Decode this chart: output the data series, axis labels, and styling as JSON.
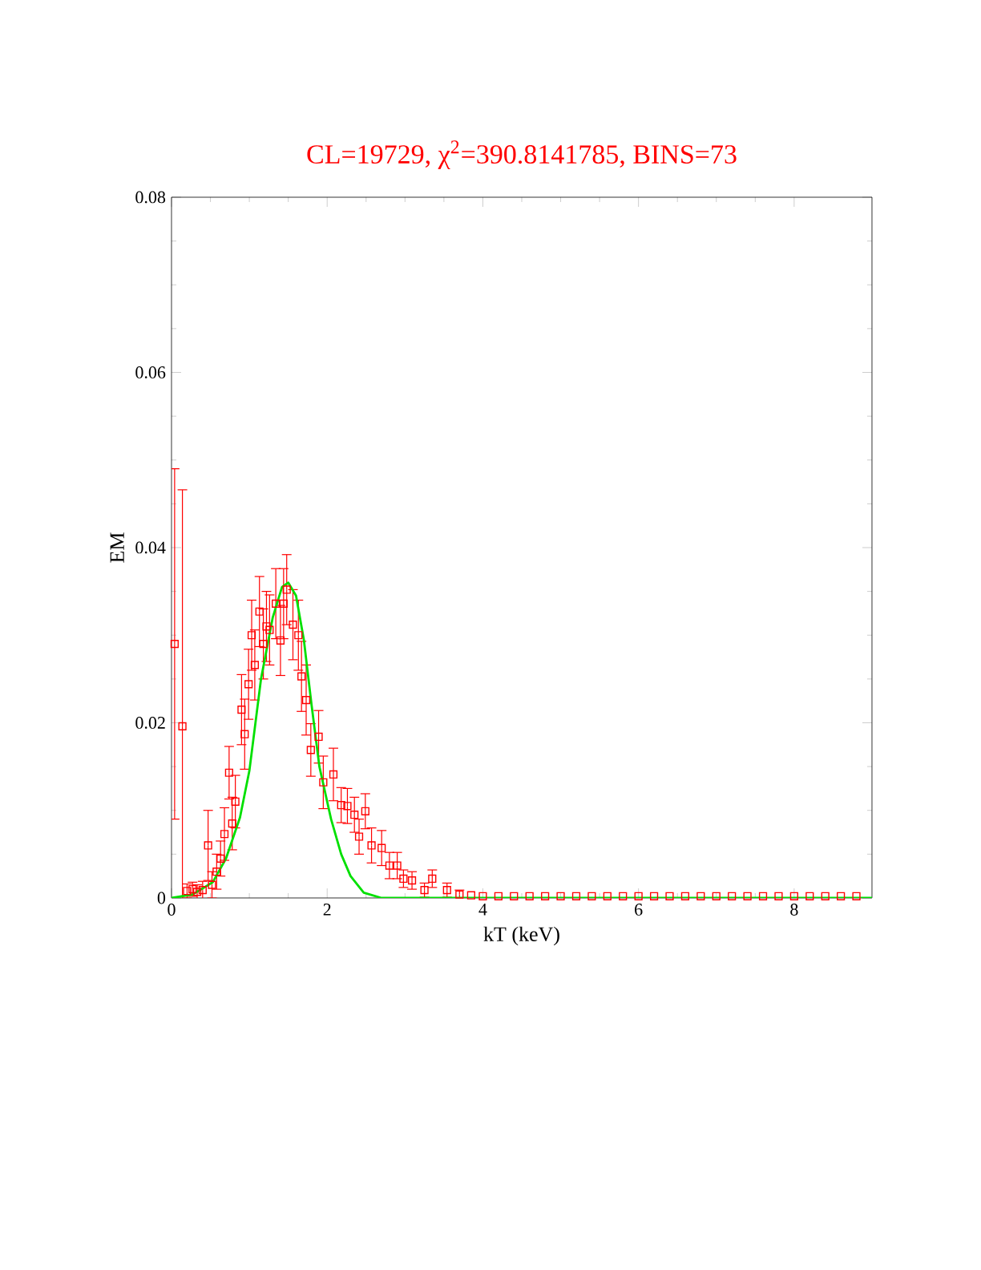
{
  "chart_data": {
    "type": "scatter",
    "title": "CL=19729, χ$^{2}$=390.8141785, BINS=73",
    "xlabel": "kT (keV)",
    "ylabel": "EM",
    "xlim": [
      0,
      9
    ],
    "ylim": [
      0,
      0.08
    ],
    "xticks": [
      0,
      2,
      4,
      6,
      8
    ],
    "yticks": [
      0,
      0.02,
      0.04,
      0.06,
      0.08
    ],
    "grid": false,
    "series": [
      {
        "color": "#ff0000",
        "marker": "square",
        "x": [
          0.04,
          0.14,
          0.2,
          0.27,
          0.33,
          0.4,
          0.47,
          0.52,
          0.58,
          0.63,
          0.68,
          0.74,
          0.78,
          0.82,
          0.9,
          0.94,
          0.99,
          1.03,
          1.07,
          1.13,
          1.18,
          1.22,
          1.26,
          1.34,
          1.4,
          1.44,
          1.48,
          1.56,
          1.63,
          1.67,
          1.73,
          1.79,
          1.89,
          1.95,
          2.08,
          2.18,
          2.26,
          2.35,
          2.41,
          2.49,
          2.57,
          2.7,
          2.8,
          2.9,
          2.98,
          3.09,
          3.25,
          3.35,
          3.54,
          3.7,
          3.85,
          4.0,
          4.2,
          4.4,
          4.6,
          4.8,
          5.0,
          5.2,
          5.4,
          5.6,
          5.8,
          6.0,
          6.2,
          6.4,
          6.6,
          6.8,
          7.0,
          7.2,
          7.4,
          7.6,
          7.8,
          8.0,
          8.2,
          8.4,
          8.6,
          8.8
        ],
        "values": [
          0.029,
          0.0196,
          0.0008,
          0.001,
          0.0007,
          0.0009,
          0.006,
          0.0015,
          0.003,
          0.0045,
          0.0073,
          0.0143,
          0.0085,
          0.011,
          0.0215,
          0.0187,
          0.0244,
          0.03,
          0.0266,
          0.0327,
          0.029,
          0.031,
          0.0306,
          0.0336,
          0.0294,
          0.0336,
          0.0352,
          0.0312,
          0.03,
          0.0253,
          0.0226,
          0.0169,
          0.0184,
          0.0132,
          0.0141,
          0.0106,
          0.0105,
          0.0095,
          0.007,
          0.0099,
          0.006,
          0.0057,
          0.0037,
          0.0037,
          0.0022,
          0.002,
          0.0009,
          0.0022,
          0.0009,
          0.0004,
          0.0003,
          0.0002,
          0.0002,
          0.0002,
          0.0002,
          0.0002,
          0.0002,
          0.0002,
          0.0002,
          0.0002,
          0.0002,
          0.0002,
          0.0002,
          0.0002,
          0.0002,
          0.0002,
          0.0002,
          0.0002,
          0.0002,
          0.0002,
          0.0002,
          0.0002,
          0.0002,
          0.0002,
          0.0002,
          0.0002
        ],
        "errors": [
          0.02,
          0.027,
          0.0008,
          0.0008,
          0.0008,
          0.001,
          0.004,
          0.0015,
          0.002,
          0.002,
          0.003,
          0.003,
          0.003,
          0.003,
          0.004,
          0.004,
          0.004,
          0.004,
          0.004,
          0.004,
          0.004,
          0.004,
          0.004,
          0.004,
          0.004,
          0.004,
          0.004,
          0.004,
          0.004,
          0.004,
          0.004,
          0.003,
          0.003,
          0.003,
          0.003,
          0.002,
          0.002,
          0.002,
          0.002,
          0.002,
          0.002,
          0.002,
          0.0015,
          0.0015,
          0.001,
          0.001,
          0.0008,
          0.001,
          0.0008,
          0.0005,
          null,
          null,
          null,
          null,
          null,
          null,
          null,
          null,
          null,
          null,
          null,
          null,
          null,
          null,
          null,
          null,
          null,
          null,
          null,
          null,
          null,
          null,
          null,
          null,
          null,
          null
        ]
      },
      {
        "type": "line",
        "color": "#00e000",
        "marker": "none",
        "x": [
          0,
          0.27,
          0.53,
          0.7,
          0.88,
          1.0,
          1.15,
          1.3,
          1.42,
          1.5,
          1.6,
          1.7,
          1.8,
          1.9,
          2.05,
          2.18,
          2.3,
          2.47,
          2.7,
          9
        ],
        "values": [
          0,
          0.0004,
          0.0018,
          0.0045,
          0.0092,
          0.0145,
          0.025,
          0.032,
          0.0355,
          0.036,
          0.0345,
          0.0295,
          0.022,
          0.015,
          0.009,
          0.005,
          0.0025,
          0.0006,
          0,
          0
        ]
      }
    ]
  }
}
